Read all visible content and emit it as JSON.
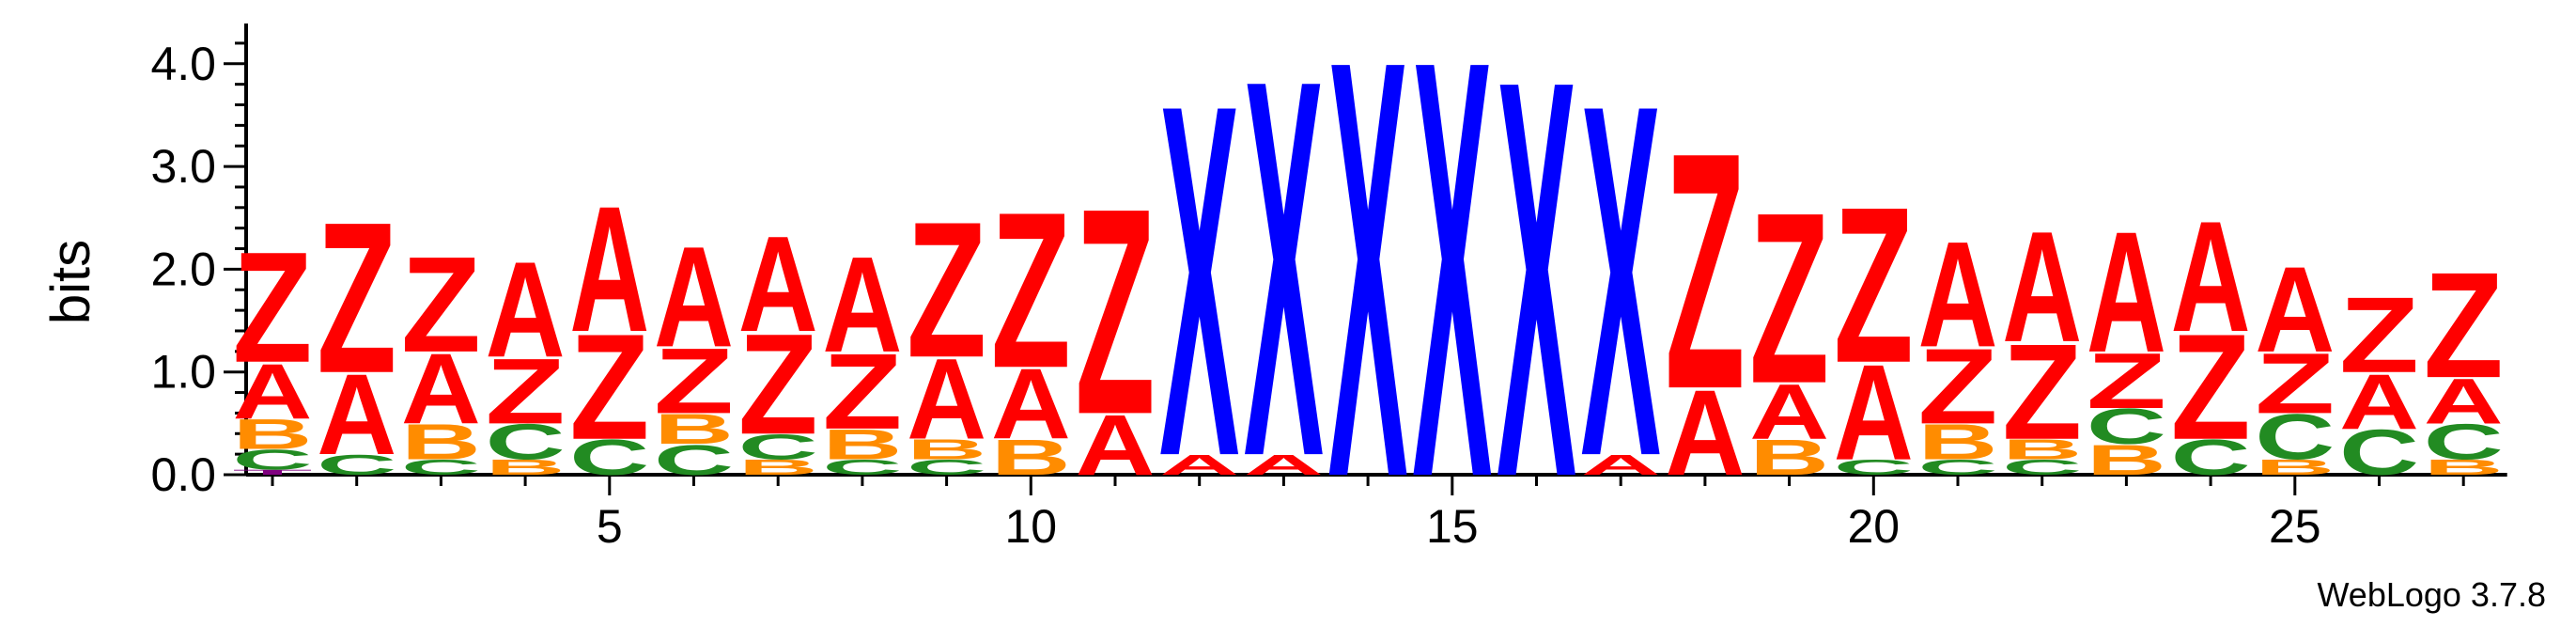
{
  "chart_data": {
    "type": "sequence_logo",
    "ylabel": "bits",
    "ylim": [
      0,
      4.3
    ],
    "y_ticks": [
      "0.0",
      "1.0",
      "2.0",
      "3.0",
      "4.0"
    ],
    "x_ticks": [
      "5",
      "10",
      "15",
      "20",
      "25"
    ],
    "x_tick_positions": [
      5,
      10,
      15,
      20,
      25
    ],
    "colors": {
      "A": "#ff0000",
      "Z": "#ff0000",
      "X": "#0000ff",
      "B": "#ff8c00",
      "C": "#228b22",
      "T": "#800080"
    },
    "positions": [
      {
        "pos": 1,
        "stack": [
          [
            "T",
            0.05
          ],
          [
            "C",
            0.2
          ],
          [
            "B",
            0.3
          ],
          [
            "A",
            0.55
          ],
          [
            "Z",
            1.1
          ]
        ]
      },
      {
        "pos": 2,
        "stack": [
          [
            "C",
            0.2
          ],
          [
            "A",
            0.8
          ],
          [
            "Z",
            1.5
          ]
        ]
      },
      {
        "pos": 3,
        "stack": [
          [
            "C",
            0.15
          ],
          [
            "B",
            0.35
          ],
          [
            "A",
            0.7
          ],
          [
            "Z",
            0.95
          ]
        ]
      },
      {
        "pos": 4,
        "stack": [
          [
            "B",
            0.15
          ],
          [
            "C",
            0.35
          ],
          [
            "Z",
            0.65
          ],
          [
            "A",
            0.95
          ]
        ]
      },
      {
        "pos": 5,
        "stack": [
          [
            "C",
            0.35
          ],
          [
            "Z",
            1.05
          ],
          [
            "A",
            1.25
          ]
        ]
      },
      {
        "pos": 6,
        "stack": [
          [
            "C",
            0.3
          ],
          [
            "B",
            0.3
          ],
          [
            "Z",
            0.65
          ],
          [
            "A",
            1.0
          ]
        ]
      },
      {
        "pos": 7,
        "stack": [
          [
            "B",
            0.15
          ],
          [
            "C",
            0.25
          ],
          [
            "Z",
            1.0
          ],
          [
            "A",
            0.95
          ]
        ]
      },
      {
        "pos": 8,
        "stack": [
          [
            "C",
            0.15
          ],
          [
            "B",
            0.3
          ],
          [
            "Z",
            0.75
          ],
          [
            "A",
            0.95
          ]
        ]
      },
      {
        "pos": 9,
        "stack": [
          [
            "C",
            0.15
          ],
          [
            "B",
            0.2
          ],
          [
            "A",
            0.8
          ],
          [
            "Z",
            1.35
          ]
        ]
      },
      {
        "pos": 10,
        "stack": [
          [
            "B",
            0.35
          ],
          [
            "A",
            0.7
          ],
          [
            "Z",
            1.55
          ]
        ]
      },
      {
        "pos": 11,
        "stack": [
          [
            "A",
            0.6
          ],
          [
            "Z",
            2.05
          ]
        ]
      },
      {
        "pos": 12,
        "stack": [
          [
            "A",
            0.2
          ],
          [
            "X",
            3.5
          ]
        ]
      },
      {
        "pos": 13,
        "stack": [
          [
            "A",
            0.2
          ],
          [
            "X",
            3.75
          ]
        ]
      },
      {
        "pos": 14,
        "stack": [
          [
            "X",
            4.15
          ]
        ]
      },
      {
        "pos": 15,
        "stack": [
          [
            "X",
            4.15
          ]
        ]
      },
      {
        "pos": 16,
        "stack": [
          [
            "X",
            3.95
          ]
        ]
      },
      {
        "pos": 17,
        "stack": [
          [
            "A",
            0.2
          ],
          [
            "X",
            3.5
          ]
        ]
      },
      {
        "pos": 18,
        "stack": [
          [
            "A",
            0.85
          ],
          [
            "Z",
            2.35
          ]
        ]
      },
      {
        "pos": 19,
        "stack": [
          [
            "B",
            0.35
          ],
          [
            "A",
            0.55
          ],
          [
            "Z",
            1.7
          ]
        ]
      },
      {
        "pos": 20,
        "stack": [
          [
            "C",
            0.15
          ],
          [
            "A",
            0.95
          ],
          [
            "Z",
            1.55
          ]
        ]
      },
      {
        "pos": 21,
        "stack": [
          [
            "C",
            0.15
          ],
          [
            "B",
            0.35
          ],
          [
            "Z",
            0.75
          ],
          [
            "A",
            1.05
          ]
        ]
      },
      {
        "pos": 22,
        "stack": [
          [
            "C",
            0.15
          ],
          [
            "B",
            0.2
          ],
          [
            "Z",
            0.95
          ],
          [
            "A",
            1.1
          ]
        ]
      },
      {
        "pos": 23,
        "stack": [
          [
            "B",
            0.3
          ],
          [
            "C",
            0.35
          ],
          [
            "Z",
            0.55
          ],
          [
            "A",
            1.2
          ]
        ]
      },
      {
        "pos": 24,
        "stack": [
          [
            "C",
            0.35
          ],
          [
            "Z",
            1.05
          ],
          [
            "A",
            1.1
          ]
        ]
      },
      {
        "pos": 25,
        "stack": [
          [
            "B",
            0.15
          ],
          [
            "C",
            0.45
          ],
          [
            "Z",
            0.6
          ],
          [
            "A",
            0.85
          ]
        ]
      },
      {
        "pos": 26,
        "stack": [
          [
            "C",
            0.45
          ],
          [
            "A",
            0.55
          ],
          [
            "Z",
            0.75
          ]
        ]
      },
      {
        "pos": 27,
        "stack": [
          [
            "B",
            0.15
          ],
          [
            "C",
            0.35
          ],
          [
            "A",
            0.45
          ],
          [
            "Z",
            1.05
          ]
        ]
      }
    ]
  },
  "credit": "WebLogo 3.7.8"
}
